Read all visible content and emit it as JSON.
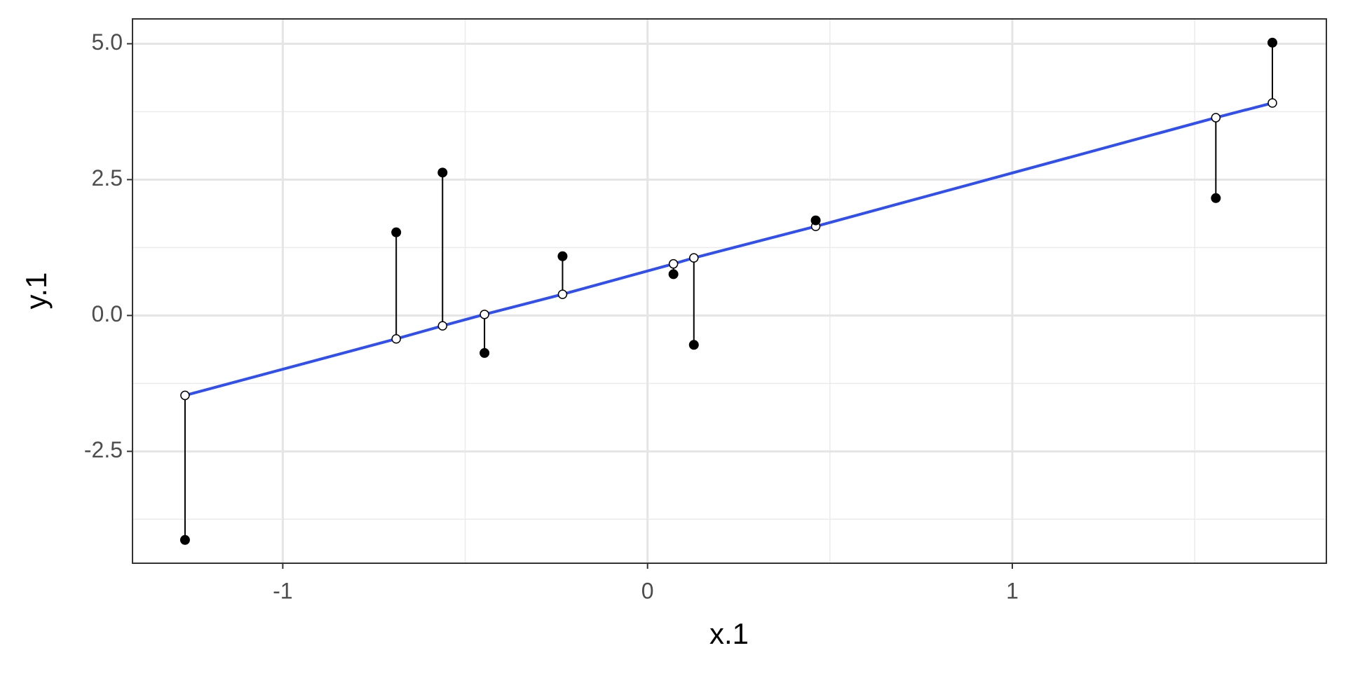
{
  "chart_data": {
    "type": "scatter",
    "x_label": "x.1",
    "y_label": "y.1",
    "x": [
      -1.268,
      -0.689,
      -0.562,
      -0.447,
      -0.233,
      0.071,
      0.127,
      0.461,
      1.558,
      1.713
    ],
    "y": [
      -4.13,
      1.53,
      2.63,
      -0.69,
      1.09,
      0.76,
      -0.54,
      1.75,
      2.16,
      5.02
    ],
    "fitted": [
      -1.47,
      -0.43,
      -0.19,
      0.02,
      0.39,
      0.95,
      1.06,
      1.64,
      3.64,
      3.91
    ],
    "point_color": "#000000",
    "line_color": "#2f4ff5",
    "segment_color": "#000000",
    "xlim": [
      -1.412,
      1.861
    ],
    "ylim": [
      -4.558,
      5.457
    ],
    "xticks": [
      -1,
      0,
      1
    ],
    "yticks": [
      -2.5,
      {
        "value": 0,
        "label": "0.0"
      },
      2.5,
      {
        "value": 5,
        "label": "5.0"
      }
    ],
    "x_minor_ticks": [
      -0.5,
      0.5,
      1.5
    ],
    "y_minor_ticks": [
      -3.75,
      -1.25,
      1.25,
      3.75
    ],
    "grid": true
  }
}
